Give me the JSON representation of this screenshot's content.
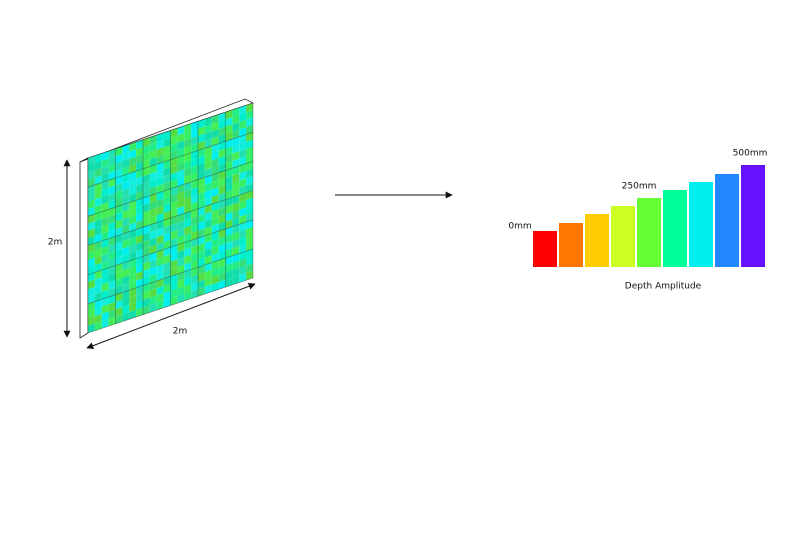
{
  "panel": {
    "height_label": "2m",
    "width_label": "2m"
  },
  "legend": {
    "min_label": "0mm",
    "mid_label": "250mm",
    "max_label": "500mm",
    "title": "Depth Amplitude"
  }
}
